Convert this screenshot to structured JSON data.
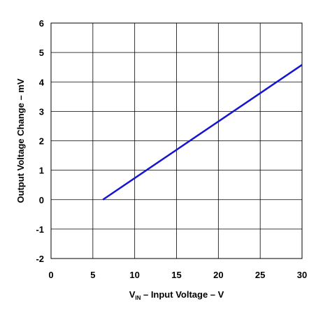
{
  "chart_data": {
    "type": "line",
    "title": "",
    "xlabel": {
      "main": "V",
      "subscript": "IN",
      "rest": " – Input Voltage – V"
    },
    "ylabel": "Output Voltage Change – mV",
    "xlim": [
      0,
      30
    ],
    "ylim": [
      -2,
      6
    ],
    "x_ticks": [
      0,
      5,
      10,
      15,
      20,
      25,
      30
    ],
    "y_ticks": [
      -2,
      -1,
      0,
      1,
      2,
      3,
      4,
      5,
      6
    ],
    "grid": true,
    "legend": "none",
    "series": [
      {
        "color": "#1414d2",
        "x": [
          6.2,
          30
        ],
        "y": [
          0,
          4.58
        ]
      }
    ]
  }
}
